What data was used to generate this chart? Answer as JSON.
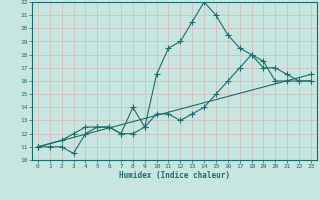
{
  "title": "",
  "xlabel": "Humidex (Indice chaleur)",
  "ylabel": "",
  "bg_color": "#c8e6e0",
  "line_color": "#1a6b6b",
  "grid_color": "#b0d4cc",
  "xlim": [
    -0.5,
    23.5
  ],
  "ylim": [
    10,
    22
  ],
  "xticks": [
    0,
    1,
    2,
    3,
    4,
    5,
    6,
    7,
    8,
    9,
    10,
    11,
    12,
    13,
    14,
    15,
    16,
    17,
    18,
    19,
    20,
    21,
    22,
    23
  ],
  "yticks": [
    10,
    11,
    12,
    13,
    14,
    15,
    16,
    17,
    18,
    19,
    20,
    21,
    22
  ],
  "line1_x": [
    0,
    1,
    2,
    3,
    4,
    5,
    6,
    7,
    8,
    9,
    10,
    11,
    12,
    13,
    14,
    15,
    16,
    17,
    18,
    19,
    20,
    21,
    22,
    23
  ],
  "line1_y": [
    11,
    11,
    11,
    10.5,
    12,
    12.5,
    12.5,
    12,
    12,
    12.5,
    16.5,
    18.5,
    19,
    20.5,
    22,
    21,
    19.5,
    18.5,
    18,
    17.5,
    16,
    16,
    16,
    16
  ],
  "line2_x": [
    0,
    2,
    3,
    4,
    5,
    6,
    7,
    8,
    9,
    10,
    11,
    12,
    13,
    14,
    15,
    16,
    17,
    18,
    19,
    20,
    21,
    22,
    23
  ],
  "line2_y": [
    11,
    11.5,
    12,
    12.5,
    12.5,
    12.5,
    12,
    14,
    12.5,
    13.5,
    13.5,
    13,
    13.5,
    14,
    15,
    16,
    17,
    18,
    17,
    17,
    16.5,
    16,
    16
  ],
  "line3_x": [
    0,
    23
  ],
  "line3_y": [
    11,
    16.5
  ],
  "marker": "+",
  "markersize": 4,
  "linewidth": 0.8
}
